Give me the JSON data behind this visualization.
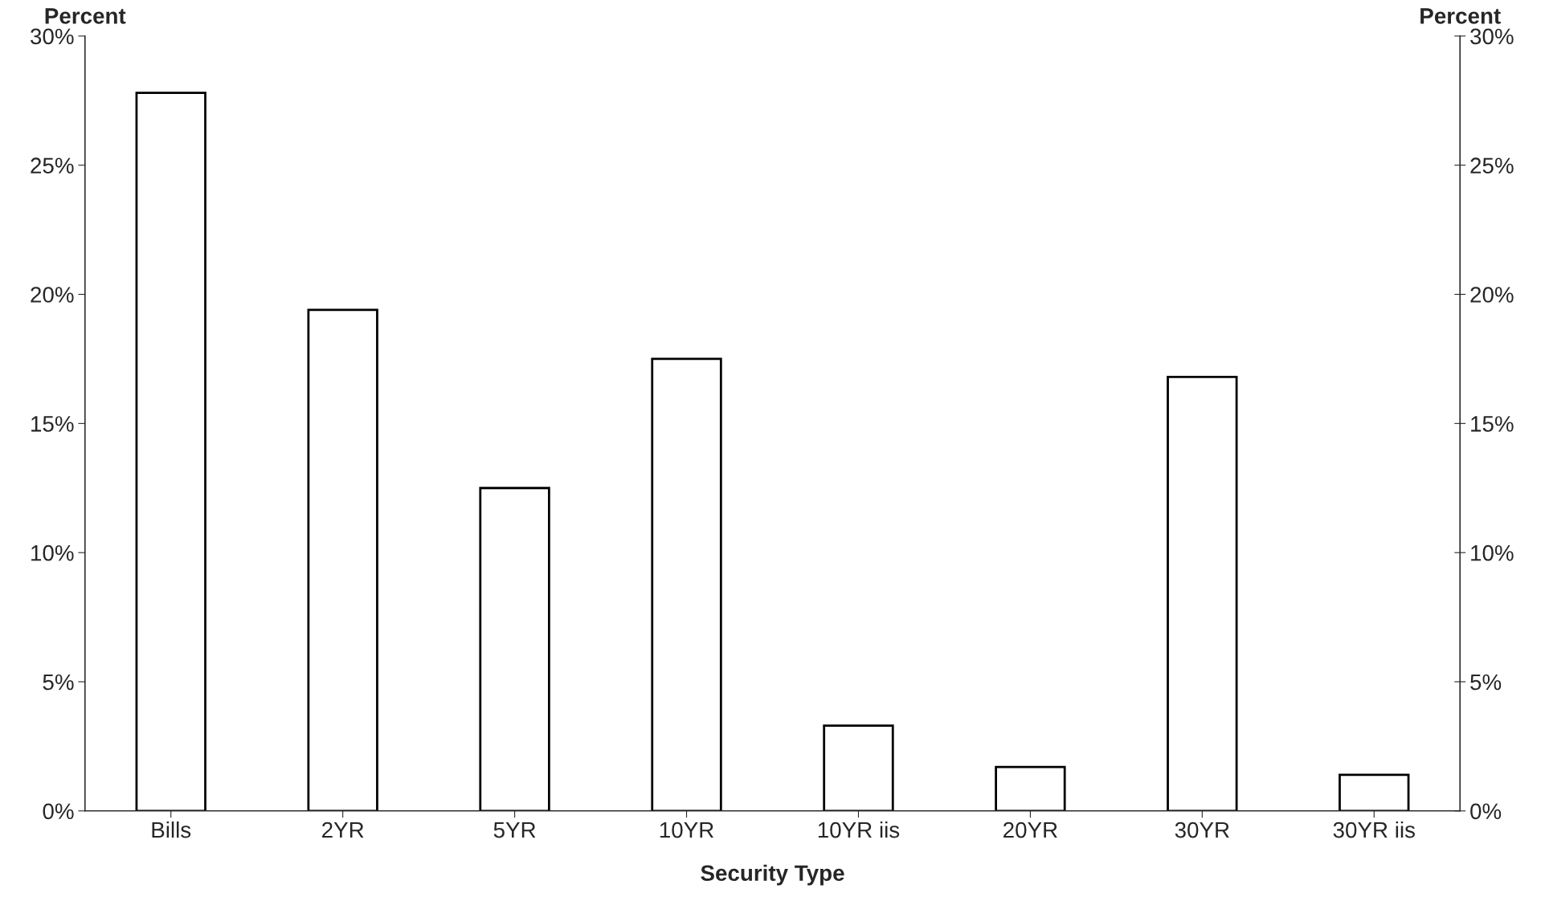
{
  "chart_data": {
    "type": "bar",
    "xlabel": "Security Type",
    "ylabel": "Percent",
    "y2label": "Percent",
    "categories": [
      "Bills",
      "2YR",
      "5YR",
      "10YR",
      "10YR iis",
      "20YR",
      "30YR",
      "30YR iis"
    ],
    "values": [
      27.8,
      19.4,
      12.5,
      17.5,
      3.3,
      1.7,
      16.8,
      1.4
    ],
    "color": "#ffffff",
    "ylim": [
      0,
      30
    ],
    "yticks": [
      {
        "value": 0,
        "label": "0%"
      },
      {
        "value": 5,
        "label": "5%"
      },
      {
        "value": 10,
        "label": "10%"
      },
      {
        "value": 15,
        "label": "15%"
      },
      {
        "value": 20,
        "label": "20%"
      },
      {
        "value": 25,
        "label": "25%"
      },
      {
        "value": 30,
        "label": "30%"
      }
    ],
    "y2lim": [
      0,
      30
    ],
    "y2ticks": [
      {
        "value": 0,
        "label": "0%"
      },
      {
        "value": 5,
        "label": "5%"
      },
      {
        "value": 10,
        "label": "10%"
      },
      {
        "value": 15,
        "label": "15%"
      },
      {
        "value": 20,
        "label": "20%"
      },
      {
        "value": 25,
        "label": "25%"
      },
      {
        "value": 30,
        "label": "30%"
      }
    ],
    "grid": false
  }
}
